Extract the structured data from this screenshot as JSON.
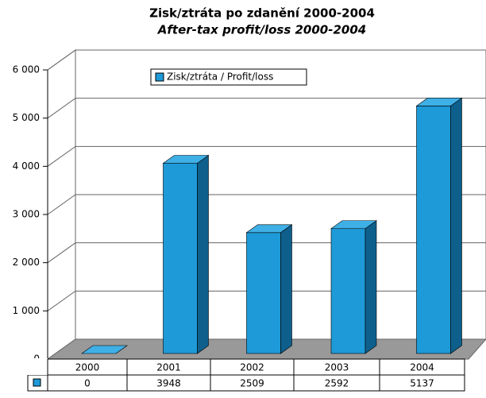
{
  "chart_data": {
    "type": "bar3d",
    "title": "Zisk/ztráta po zdanění 2000-2004",
    "subtitle": "After-tax profit/loss 2000-2004",
    "categories": [
      "2000",
      "2001",
      "2002",
      "2003",
      "2004"
    ],
    "series": [
      {
        "name": "Zisk/ztráta / Profit/loss",
        "color": "#1e9ad8",
        "values": [
          0,
          3948,
          2509,
          2592,
          5137
        ]
      }
    ],
    "ylim": [
      0,
      6000
    ],
    "yticks": [
      0,
      {
        "value": 1000,
        "label": "1 000"
      },
      {
        "value": 2000,
        "label": "2 000"
      },
      {
        "value": 3000,
        "label": "3 000"
      },
      {
        "value": 4000,
        "label": "4 000"
      },
      {
        "value": 5000,
        "label": "5 000"
      },
      {
        "value": 6000,
        "label": "6 000"
      }
    ],
    "grid": true
  }
}
